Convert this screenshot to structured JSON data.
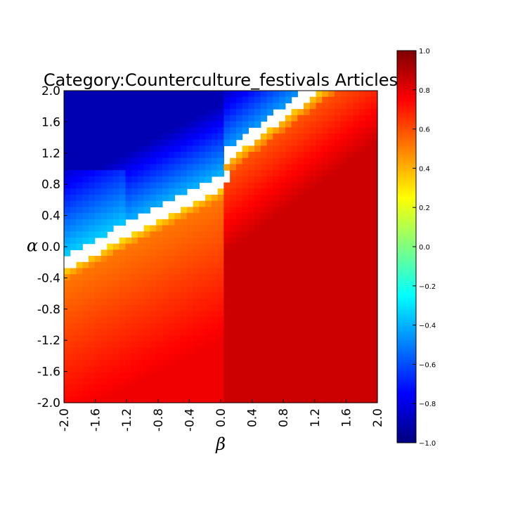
{
  "chart_data": {
    "type": "heatmap",
    "title": "Category:Counterculture_festivals Articles",
    "xlabel": "β",
    "ylabel": "α",
    "xlim": [
      -2.0,
      2.0
    ],
    "ylim": [
      -2.0,
      2.0
    ],
    "x_ticks": [
      "-2.0",
      "-1.6",
      "-1.2",
      "-0.8",
      "-0.4",
      "0.0",
      "0.4",
      "0.8",
      "1.2",
      "1.6",
      "2.0"
    ],
    "y_ticks": [
      "2.0",
      "1.6",
      "1.2",
      "0.8",
      "0.4",
      "0.0",
      "-0.4",
      "-0.8",
      "-1.2",
      "-1.6",
      "-2.0"
    ],
    "grid_resolution": 51,
    "colormap": "jet",
    "colorbar": {
      "range": [
        -1.0,
        1.0
      ],
      "ticks": [
        "1.0",
        "0.8",
        "0.6",
        "0.4",
        "0.2",
        "0.0",
        "−0.2",
        "−0.4",
        "−0.6",
        "−0.8",
        "−1.0"
      ]
    },
    "regions": [
      {
        "description_value": "negative correlation (about -0.7 to -0.9) where alpha is large relative to beta (upper-left)",
        "value_range": [
          -0.9,
          -0.35
        ]
      },
      {
        "description_value": "undefined (white) band along boundary between regions",
        "value_range": null
      },
      {
        "description_value": "positive correlation (about 0.6 to 0.9) in lower and right part",
        "value_range": [
          0.3,
          0.9
        ]
      }
    ]
  }
}
